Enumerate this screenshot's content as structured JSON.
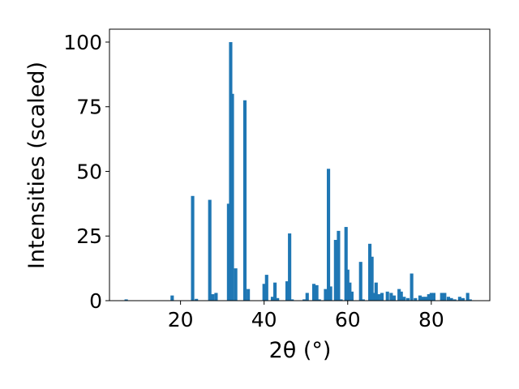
{
  "chart_data": {
    "type": "bar",
    "xlabel": "2θ (°)",
    "ylabel": "Intensities (scaled)",
    "xlim": [
      3,
      94
    ],
    "ylim": [
      0,
      105
    ],
    "xticks": [
      20,
      40,
      60,
      80
    ],
    "yticks": [
      0,
      25,
      50,
      75,
      100
    ],
    "grid": false,
    "bar_color": "#1f77b4",
    "bar_width": 0.8,
    "x": [
      7.0,
      18.0,
      22.9,
      23.8,
      27.0,
      27.7,
      28.5,
      31.5,
      32.0,
      32.4,
      33.2,
      35.4,
      36.2,
      40.0,
      40.6,
      42.0,
      42.6,
      43.2,
      45.5,
      46.1,
      46.7,
      49.6,
      50.3,
      51.9,
      52.6,
      53.2,
      54.7,
      55.4,
      55.9,
      57.1,
      57.8,
      58.4,
      59.6,
      60.0,
      60.5,
      61.0,
      63.1,
      63.7,
      65.3,
      65.8,
      66.2,
      66.8,
      67.4,
      68.2,
      69.5,
      70.4,
      71.1,
      72.3,
      72.8,
      73.5,
      74.4,
      75.3,
      76.2,
      77.3,
      78.1,
      78.8,
      79.4,
      80.0,
      80.6,
      82.5,
      83.2,
      84.1,
      84.8,
      85.6,
      86.8,
      87.6,
      88.7,
      89.3
    ],
    "values": [
      0.5,
      2.0,
      40.5,
      0.7,
      39.0,
      2.5,
      3.0,
      37.5,
      100.0,
      80.0,
      12.5,
      77.5,
      4.5,
      6.5,
      10.0,
      1.5,
      7.0,
      1.0,
      7.5,
      26.0,
      0.5,
      0.5,
      3.0,
      6.5,
      6.0,
      0.5,
      4.5,
      51.0,
      5.5,
      23.5,
      27.0,
      0.5,
      28.5,
      12.0,
      7.0,
      3.5,
      15.0,
      0.5,
      22.0,
      17.0,
      3.0,
      7.0,
      2.5,
      3.0,
      3.5,
      3.0,
      2.0,
      4.5,
      3.5,
      1.5,
      1.0,
      10.5,
      1.0,
      2.0,
      1.5,
      1.5,
      2.5,
      3.0,
      3.0,
      3.0,
      3.0,
      1.5,
      1.0,
      0.5,
      1.5,
      1.0,
      3.0,
      0.5
    ]
  }
}
